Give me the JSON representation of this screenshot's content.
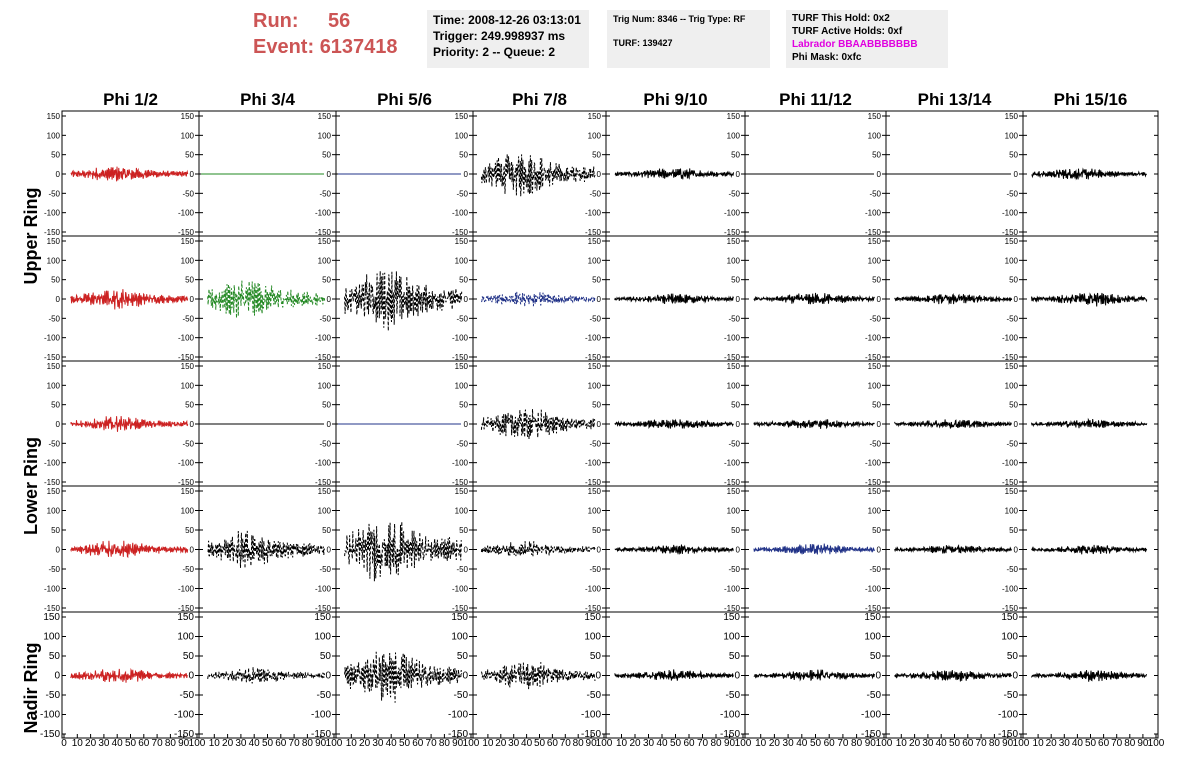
{
  "header": {
    "run_label": "Run:",
    "run_value": "56",
    "event_label": "Event:",
    "event_value": "6137418",
    "time": "Time: 2008-12-26 03:13:01",
    "trigger": "Trigger: 249.998937 ms",
    "priority": "Priority: 2 -- Queue: 2",
    "trig_num": "Trig Num: 8346 -- Trig Type: RF",
    "turf": "TURF: 139427",
    "turf_this_hold": "TURF This Hold: 0x2",
    "turf_active_holds": "TURF Active Holds: 0xf",
    "labrador": "Labrador BBAABBBBBBB",
    "phi_mask": "Phi Mask: 0xfc"
  },
  "colors": {
    "header_red": "#cc5555",
    "labrador_magenta": "#e000e0",
    "trace_red": "#cc2222",
    "trace_green": "#228822",
    "trace_blue": "#223388",
    "trace_black": "#000000"
  },
  "chart_data": {
    "type": "line",
    "columns": [
      "Phi 1/2",
      "Phi 3/4",
      "Phi 5/6",
      "Phi 7/8",
      "Phi 9/10",
      "Phi 11/12",
      "Phi 13/14",
      "Phi 15/16"
    ],
    "row_labels": [
      "Upper Ring",
      "Lower Ring",
      "Nadir Ring"
    ],
    "ylim": [
      -150,
      150
    ],
    "y_ticks": [
      "150",
      "100",
      "50",
      "0",
      "-50",
      "-100",
      "-150"
    ],
    "xlim": [
      0,
      100
    ],
    "x_ticks": [
      "0",
      "10",
      "20",
      "30",
      "40",
      "50",
      "60",
      "70",
      "80",
      "90",
      "100"
    ],
    "grid": false,
    "panels": [
      [
        {
          "style": "solid",
          "color": "red",
          "amp": 20,
          "center": 40
        },
        {
          "style": "flat",
          "color": "green"
        },
        {
          "style": "flat",
          "color": "blue"
        },
        {
          "style": "dashed",
          "color": "black",
          "amp": 55,
          "center": 35
        },
        {
          "style": "solid",
          "color": "black",
          "amp": 15,
          "center": 50
        },
        {
          "style": "flat",
          "color": "black"
        },
        {
          "style": "flat",
          "color": "black"
        },
        {
          "style": "solid",
          "color": "black",
          "amp": 15,
          "center": 40
        }
      ],
      [
        {
          "style": "solid",
          "color": "red",
          "amp": 25,
          "center": 40
        },
        {
          "style": "dashed",
          "color": "green",
          "amp": 50,
          "center": 35
        },
        {
          "style": "dashed",
          "color": "black",
          "amp": 75,
          "center": 35
        },
        {
          "style": "dashed",
          "color": "blue",
          "amp": 20,
          "center": 40
        },
        {
          "style": "solid",
          "color": "black",
          "amp": 13,
          "center": 50
        },
        {
          "style": "solid",
          "color": "black",
          "amp": 15,
          "center": 50
        },
        {
          "style": "solid",
          "color": "black",
          "amp": 14,
          "center": 50
        },
        {
          "style": "solid",
          "color": "black",
          "amp": 18,
          "center": 50
        }
      ],
      [
        {
          "style": "solid",
          "color": "red",
          "amp": 20,
          "center": 40
        },
        {
          "style": "flat",
          "color": "black"
        },
        {
          "style": "flat",
          "color": "blue"
        },
        {
          "style": "dashed",
          "color": "black",
          "amp": 40,
          "center": 40
        },
        {
          "style": "solid",
          "color": "black",
          "amp": 14,
          "center": 50
        },
        {
          "style": "solid",
          "color": "black",
          "amp": 12,
          "center": 50
        },
        {
          "style": "solid",
          "color": "black",
          "amp": 13,
          "center": 50
        },
        {
          "style": "solid",
          "color": "black",
          "amp": 12,
          "center": 50
        }
      ],
      [
        {
          "style": "solid",
          "color": "red",
          "amp": 22,
          "center": 40
        },
        {
          "style": "dashed",
          "color": "black",
          "amp": 45,
          "center": 35
        },
        {
          "style": "dashed",
          "color": "black",
          "amp": 80,
          "center": 35
        },
        {
          "style": "dashed",
          "color": "black",
          "amp": 20,
          "center": 40
        },
        {
          "style": "solid",
          "color": "black",
          "amp": 12,
          "center": 50
        },
        {
          "style": "solid",
          "color": "blue",
          "amp": 14,
          "center": 50
        },
        {
          "style": "solid",
          "color": "black",
          "amp": 12,
          "center": 50
        },
        {
          "style": "solid",
          "color": "black",
          "amp": 12,
          "center": 50
        }
      ],
      [
        {
          "style": "solid",
          "color": "red",
          "amp": 20,
          "center": 40
        },
        {
          "style": "dashed",
          "color": "black",
          "amp": 20,
          "center": 40
        },
        {
          "style": "dashed",
          "color": "black",
          "amp": 70,
          "center": 35
        },
        {
          "style": "dashed",
          "color": "black",
          "amp": 35,
          "center": 40
        },
        {
          "style": "solid",
          "color": "black",
          "amp": 14,
          "center": 50
        },
        {
          "style": "solid",
          "color": "black",
          "amp": 14,
          "center": 50
        },
        {
          "style": "solid",
          "color": "black",
          "amp": 14,
          "center": 50
        },
        {
          "style": "solid",
          "color": "black",
          "amp": 14,
          "center": 50
        }
      ]
    ]
  }
}
